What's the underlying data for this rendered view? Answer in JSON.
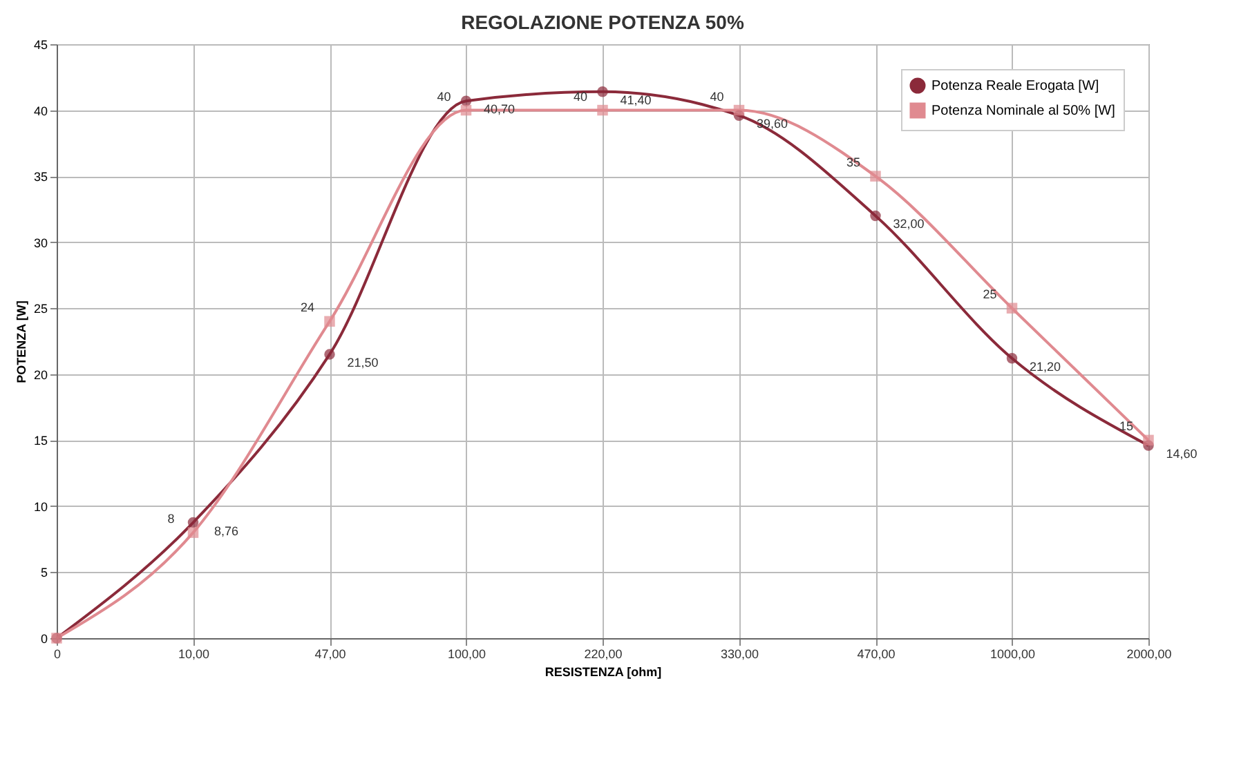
{
  "chart_data": {
    "type": "line",
    "title": "REGOLAZIONE POTENZA 50%",
    "xlabel": "RESISTENZA [ohm]",
    "ylabel": "POTENZA [W]",
    "categories": [
      "0",
      "10,00",
      "47,00",
      "100,00",
      "220,00",
      "330,00",
      "470,00",
      "1000,00",
      "2000,00"
    ],
    "series": [
      {
        "name": "Potenza Reale Erogata [W]",
        "color": "#8b2a3a",
        "marker": "circle",
        "values": [
          0,
          8.76,
          21.5,
          40.7,
          41.4,
          39.6,
          32,
          21.2,
          14.6
        ],
        "value_labels": [
          null,
          "8,76",
          "21,50",
          "40,70",
          "41,40",
          "39,60",
          "32,00",
          "21,20",
          "14,60"
        ]
      },
      {
        "name": "Potenza Nominale al 50% [W]",
        "color": "#e08a90",
        "marker": "square",
        "values": [
          0,
          8,
          24,
          40,
          40,
          40,
          35,
          25,
          15
        ],
        "value_labels": [
          null,
          "8",
          "24",
          "40",
          "40",
          "40",
          "35",
          "25",
          "15"
        ]
      }
    ],
    "ylim": [
      0,
      45
    ],
    "yticks": [
      0,
      5,
      10,
      15,
      20,
      25,
      30,
      35,
      40,
      45
    ],
    "grid": true,
    "legend": "top right",
    "line_style": "solid"
  }
}
